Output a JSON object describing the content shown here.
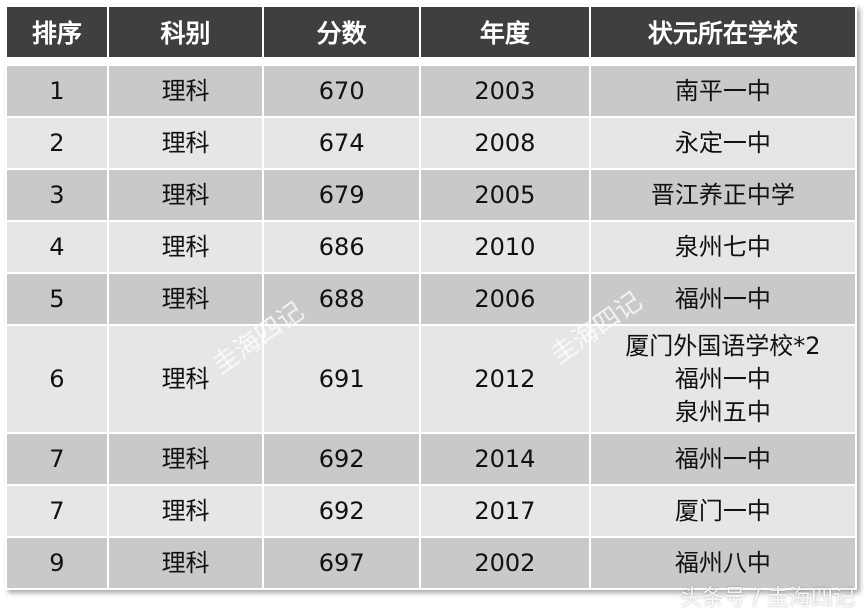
{
  "headers": [
    "排序",
    "科别",
    "分数",
    "年度",
    "状元所在学校"
  ],
  "rows": [
    {
      "rank": "1",
      "subject": "理科",
      "score": "670",
      "year": "2003",
      "school": "南平一中"
    },
    {
      "rank": "2",
      "subject": "理科",
      "score": "674",
      "year": "2008",
      "school": "永定一中"
    },
    {
      "rank": "3",
      "subject": "理科",
      "score": "679",
      "year": "2005",
      "school": "晋江养正中学"
    },
    {
      "rank": "4",
      "subject": "理科",
      "score": "686",
      "year": "2010",
      "school": "泉州七中"
    },
    {
      "rank": "5",
      "subject": "理科",
      "score": "688",
      "year": "2006",
      "school": "福州一中"
    },
    {
      "rank": "6",
      "subject": "理科",
      "score": "691",
      "year": "2012",
      "school": "厦门外国语学校*2\n福州一中\n泉州五中"
    },
    {
      "rank": "7",
      "subject": "理科",
      "score": "692",
      "year": "2014",
      "school": "福州一中"
    },
    {
      "rank": "7",
      "subject": "理科",
      "score": "692",
      "year": "2017",
      "school": "厦门一中"
    },
    {
      "rank": "9",
      "subject": "理科",
      "score": "697",
      "year": "2002",
      "school": "福州八中"
    }
  ],
  "colors": {
    "header_bg": "#3f3f3f",
    "row_dark": "#c9c9c9",
    "row_light": "#e6e6e6"
  },
  "watermark": "圭海四记",
  "credit": "头条号 / 圭海四记"
}
